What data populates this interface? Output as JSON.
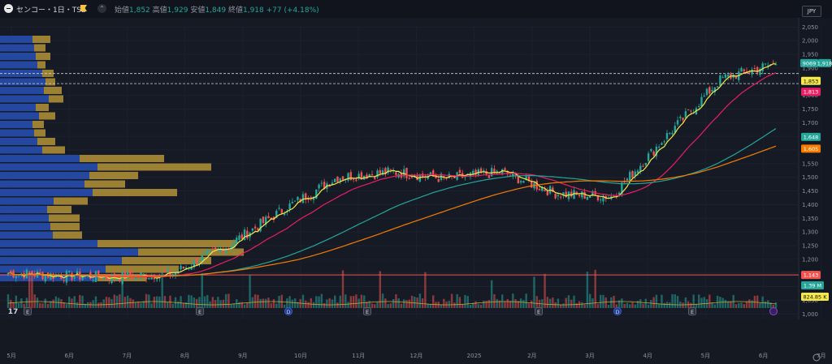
{
  "header": {
    "symbol_label": "センコー・1日・TSE",
    "open_label": "始値",
    "open_value": "1,852",
    "high_label": "高値",
    "high_value": "1,929",
    "low_label": "安値",
    "low_value": "1,849",
    "close_label": "終値",
    "close_value": "1,918",
    "change": "+77 (+4.18%)",
    "currency": "JPY",
    "indicator_count": "13",
    "collapse_icon": "chevron-down-icon"
  },
  "colors": {
    "up": "#26a69a",
    "down": "#ef5350",
    "ma_short": "#f5e84a",
    "ma_mid": "#e91e63",
    "ma_long": "#26a69a",
    "ma_longest": "#f57c00",
    "vp_up": "#2a57c9",
    "vp_down": "#c9a33a",
    "poc_line": "#ef5350"
  },
  "price_axis": {
    "ticks": [
      "2,050",
      "2,000",
      "1,950",
      "1,900",
      "1,850",
      "1,800",
      "1,750",
      "1,700",
      "1,650",
      "1,600",
      "1,550",
      "1,500",
      "1,450",
      "1,400",
      "1,350",
      "1,300",
      "1,250",
      "1,200",
      "1,150",
      "1,100",
      "1,050",
      "1,000"
    ]
  },
  "time_axis": {
    "labels": [
      "5月",
      "6月",
      "7月",
      "8月",
      "9月",
      "10月",
      "11月",
      "12月",
      "2025",
      "2月",
      "3月",
      "4月",
      "5月",
      "6月",
      "7月"
    ]
  },
  "price_tags": [
    {
      "text": "9069",
      "kind": "volume-id"
    },
    {
      "text": "1,918",
      "kind": "last"
    },
    {
      "text": "1,853",
      "kind": "marker"
    },
    {
      "text": "1,813",
      "kind": "ma_mid"
    },
    {
      "text": "1,648",
      "kind": "ma_long"
    },
    {
      "text": "1,605",
      "kind": "ma_longest"
    },
    {
      "text": "1,143",
      "kind": "poc"
    },
    {
      "text": "1.39 M",
      "kind": "volume"
    },
    {
      "text": "824.85 K",
      "kind": "volume_ma"
    }
  ],
  "event_markers": [
    "E",
    "E",
    "D",
    "E",
    "E",
    "D",
    "E"
  ],
  "chart_data": {
    "type": "candlestick",
    "ylim": [
      980,
      2060
    ],
    "x": [
      "5月",
      "6月",
      "7月",
      "8月",
      "9月",
      "10月",
      "11月",
      "12月",
      "2025",
      "2月",
      "3月",
      "4月",
      "5月",
      "6月",
      "7月"
    ],
    "close_trend": [
      1150,
      1140,
      1135,
      1148,
      1250,
      1380,
      1500,
      1520,
      1495,
      1520,
      1440,
      1430,
      1650,
      1860,
      1918
    ],
    "ma_values": [
      1148,
      1853,
      1813,
      1648,
      1605
    ],
    "poc_price": 1143
  }
}
